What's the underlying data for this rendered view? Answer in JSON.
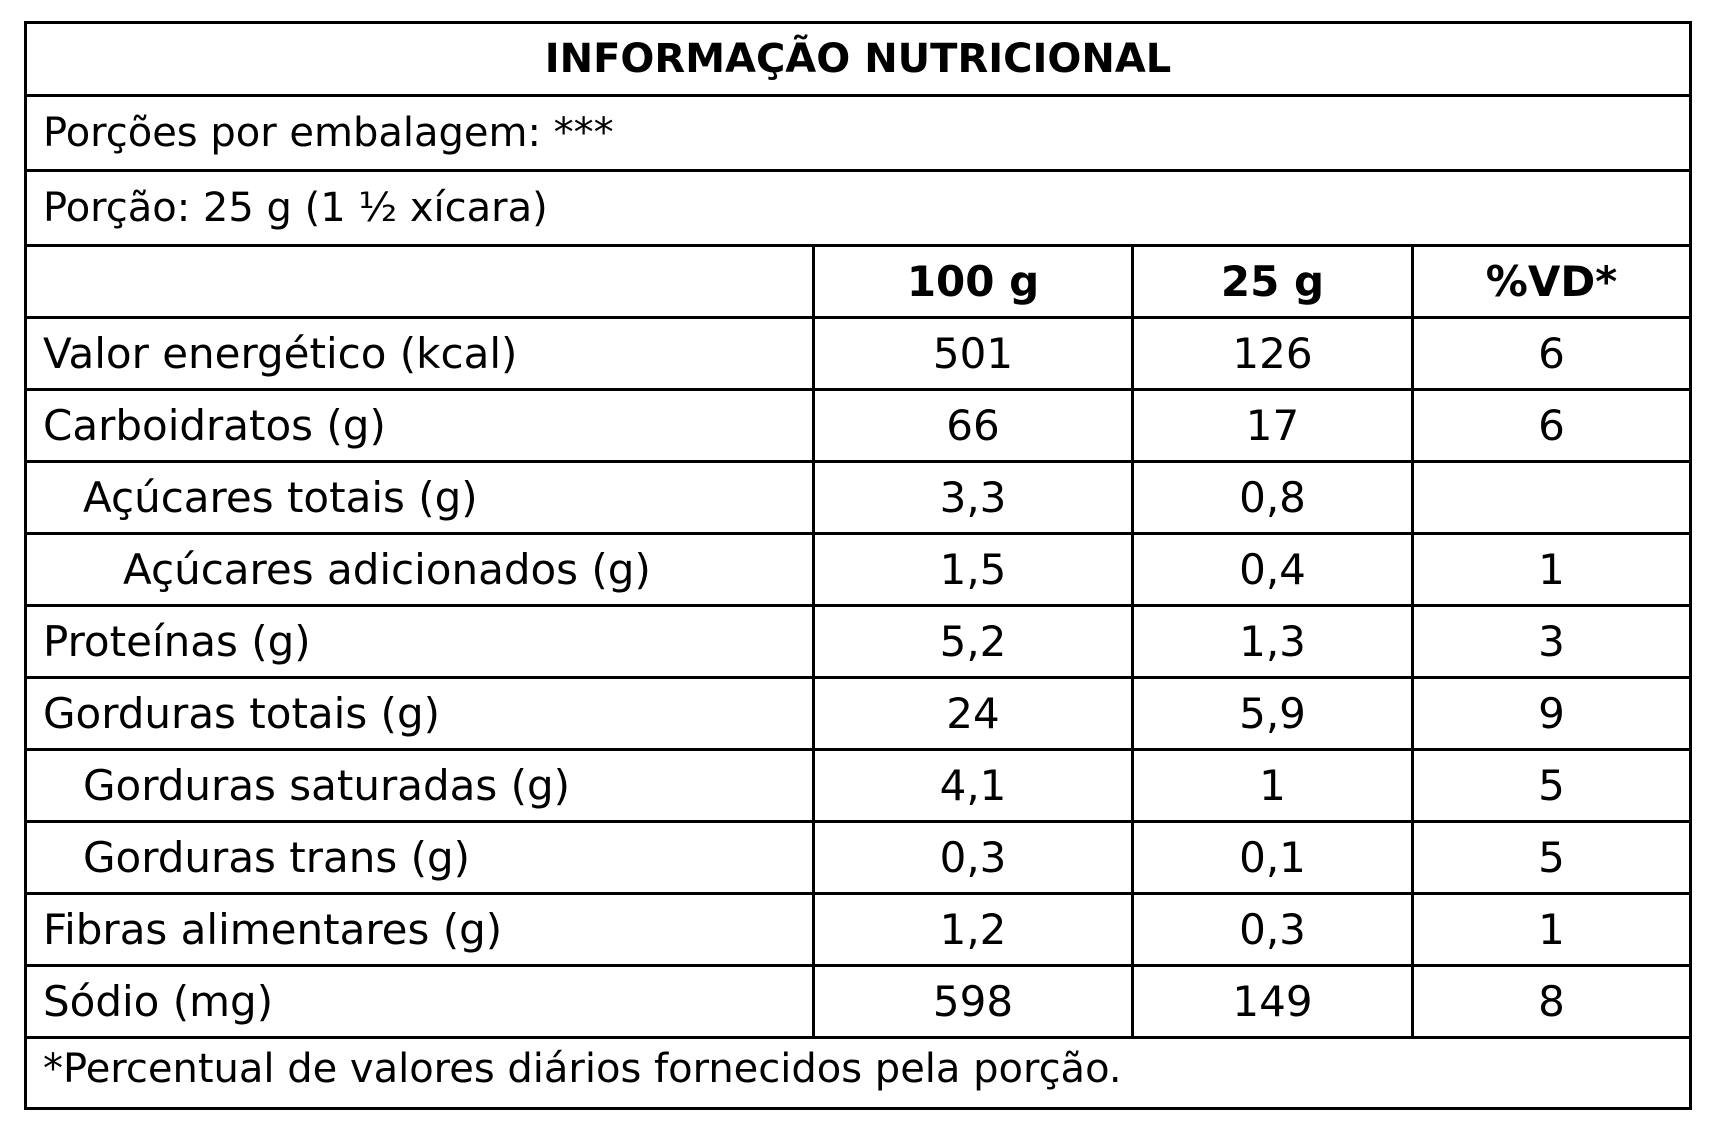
{
  "title": "INFORMAÇÃO NUTRICIONAL",
  "servings_per_package": "Porções por embalagem: ***",
  "serving_size": "Porção: 25 g (1 ½ xícara)",
  "columns": [
    "",
    "100 g",
    "25 g",
    "%VD*"
  ],
  "rows": [
    {
      "label": "Valor energético (kcal)",
      "indent": 0,
      "per_100g": "501",
      "per_portion": "126",
      "dv": "6"
    },
    {
      "label": "Carboidratos (g)",
      "indent": 0,
      "per_100g": "66",
      "per_portion": "17",
      "dv": "6"
    },
    {
      "label": "Açúcares totais (g)",
      "indent": 1,
      "per_100g": "3,3",
      "per_portion": "0,8",
      "dv": ""
    },
    {
      "label": "Açúcares adicionados (g)",
      "indent": 2,
      "per_100g": "1,5",
      "per_portion": "0,4",
      "dv": "1"
    },
    {
      "label": "Proteínas (g)",
      "indent": 0,
      "per_100g": "5,2",
      "per_portion": "1,3",
      "dv": "3"
    },
    {
      "label": "Gorduras totais (g)",
      "indent": 0,
      "per_100g": "24",
      "per_portion": "5,9",
      "dv": "9"
    },
    {
      "label": "Gorduras saturadas (g)",
      "indent": 1,
      "per_100g": "4,1",
      "per_portion": "1",
      "dv": "5"
    },
    {
      "label": "Gorduras trans (g)",
      "indent": 1,
      "per_100g": "0,3",
      "per_portion": "0,1",
      "dv": "5"
    },
    {
      "label": "Fibras alimentares (g)",
      "indent": 0,
      "per_100g": "1,2",
      "per_portion": "0,3",
      "dv": "1"
    },
    {
      "label": "Sódio (mg)",
      "indent": 0,
      "per_100g": "598",
      "per_portion": "149",
      "dv": "8"
    }
  ],
  "footnote": "*Percentual de valores diários fornecidos pela porção."
}
